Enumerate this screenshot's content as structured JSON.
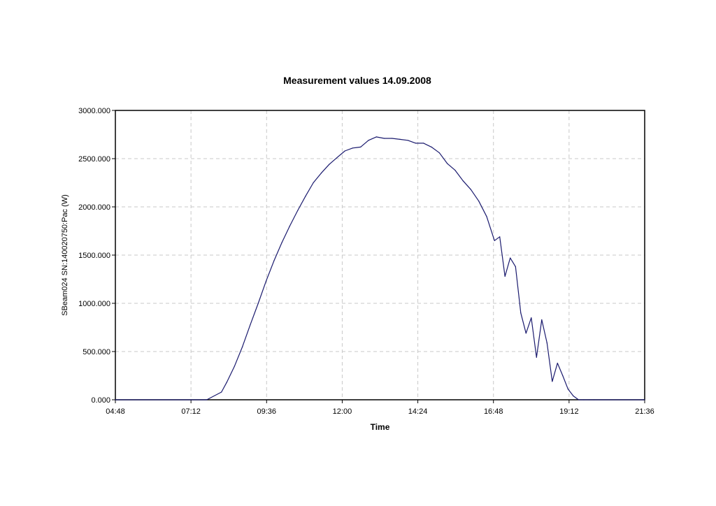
{
  "chart_data": {
    "type": "line",
    "title": "Measurement values 14.09.2008",
    "xlabel": "Time",
    "ylabel": "SBeam024 SN:140020750:Pac (W)",
    "x_ticks": [
      "04:48",
      "07:12",
      "09:36",
      "12:00",
      "14:24",
      "16:48",
      "19:12",
      "21:36"
    ],
    "y_ticks": [
      "0.000",
      "500.000",
      "1000.000",
      "1500.000",
      "2000.000",
      "2500.000",
      "3000.000"
    ],
    "xlim": [
      "04:48",
      "21:36"
    ],
    "ylim": [
      0,
      3000
    ],
    "grid": true,
    "line_color": "#1a1a6e",
    "series": [
      {
        "x": [
          "04:48",
          "07:12",
          "07:42",
          "08:10",
          "08:20",
          "08:35",
          "08:50",
          "09:05",
          "09:20",
          "09:35",
          "09:50",
          "10:05",
          "10:20",
          "10:35",
          "10:50",
          "11:05",
          "11:20",
          "11:35",
          "11:50",
          "12:05",
          "12:20",
          "12:35",
          "12:50",
          "13:05",
          "13:20",
          "13:35",
          "13:50",
          "14:05",
          "14:20",
          "14:35",
          "14:50",
          "15:05",
          "15:20",
          "15:35",
          "15:50",
          "16:05",
          "16:20",
          "16:35",
          "16:50",
          "17:00",
          "17:10",
          "17:20",
          "17:30",
          "17:40",
          "17:50",
          "18:00",
          "18:10",
          "18:20",
          "18:30",
          "18:40",
          "18:50",
          "19:00",
          "19:10",
          "19:20",
          "19:30",
          "19:40",
          "19:50",
          "20:00",
          "21:36"
        ],
        "values": [
          0,
          0,
          0,
          80,
          180,
          350,
          550,
          780,
          1000,
          1230,
          1440,
          1630,
          1800,
          1960,
          2110,
          2250,
          2350,
          2440,
          2510,
          2580,
          2610,
          2620,
          2690,
          2725,
          2710,
          2710,
          2700,
          2690,
          2660,
          2660,
          2620,
          2560,
          2450,
          2380,
          2270,
          2180,
          2060,
          1900,
          1650,
          1690,
          1280,
          1470,
          1380,
          900,
          690,
          850,
          440,
          830,
          590,
          190,
          380,
          250,
          110,
          40,
          0,
          0,
          0,
          0,
          0
        ]
      }
    ]
  }
}
